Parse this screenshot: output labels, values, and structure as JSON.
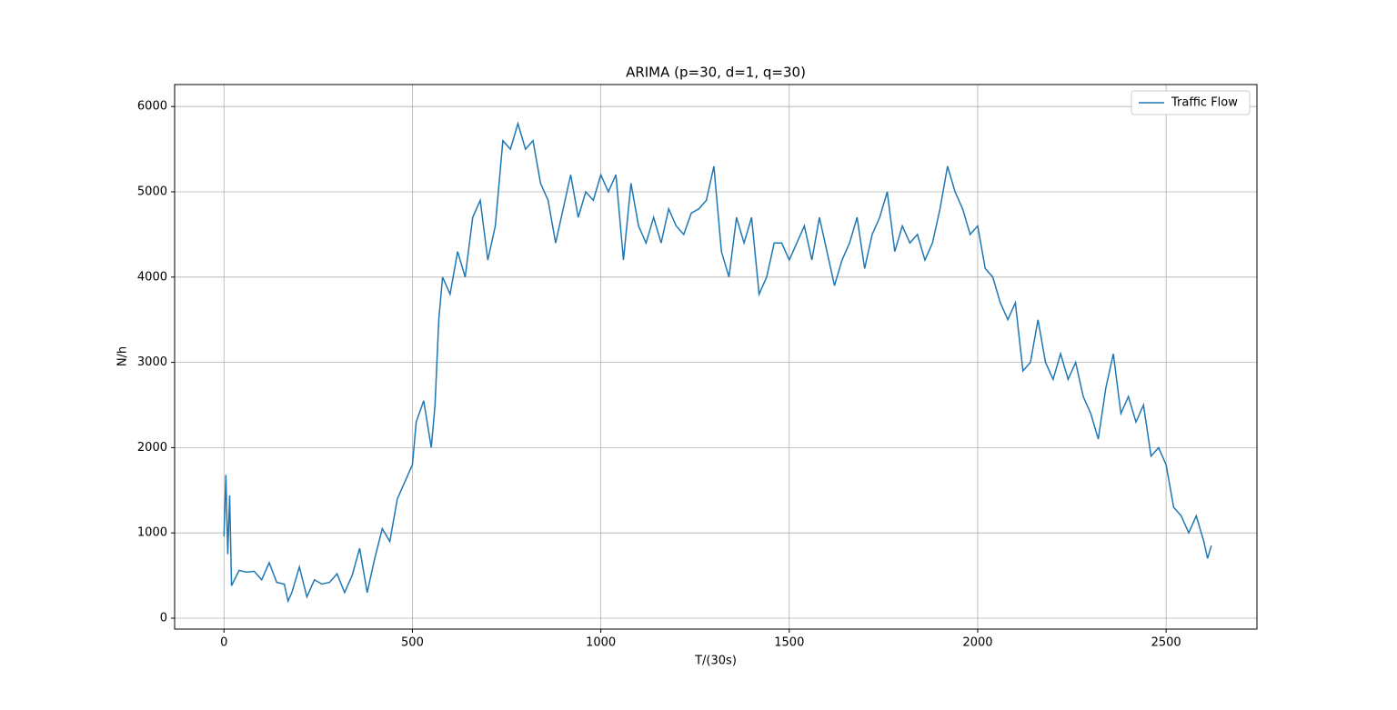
{
  "chart_data": {
    "type": "line",
    "title": "ARIMA (p=30, d=1, q=30)",
    "xlabel": "T/(30s)",
    "ylabel": "N/h",
    "x": [
      0,
      5,
      10,
      15,
      20,
      40,
      60,
      80,
      100,
      120,
      140,
      160,
      170,
      180,
      200,
      220,
      240,
      260,
      280,
      300,
      320,
      340,
      360,
      380,
      400,
      420,
      440,
      460,
      480,
      500,
      510,
      530,
      550,
      560,
      570,
      580,
      600,
      620,
      640,
      660,
      680,
      700,
      720,
      740,
      760,
      780,
      800,
      820,
      840,
      860,
      880,
      900,
      920,
      940,
      960,
      980,
      1000,
      1020,
      1040,
      1060,
      1080,
      1100,
      1120,
      1140,
      1160,
      1180,
      1200,
      1220,
      1240,
      1260,
      1280,
      1300,
      1320,
      1340,
      1360,
      1380,
      1400,
      1420,
      1440,
      1460,
      1480,
      1500,
      1520,
      1540,
      1560,
      1580,
      1600,
      1620,
      1640,
      1660,
      1680,
      1700,
      1720,
      1740,
      1760,
      1780,
      1800,
      1820,
      1840,
      1860,
      1880,
      1900,
      1920,
      1940,
      1960,
      1980,
      2000,
      2020,
      2040,
      2060,
      2080,
      2100,
      2120,
      2140,
      2160,
      2180,
      2200,
      2220,
      2240,
      2260,
      2280,
      2300,
      2320,
      2340,
      2360,
      2380,
      2400,
      2420,
      2440,
      2460,
      2480,
      2500,
      2520,
      2540,
      2560,
      2580,
      2600,
      2610,
      2620
    ],
    "series": [
      {
        "name": "Traffic Flow",
        "color": "#1f77b4",
        "values": [
          960,
          1680,
          750,
          1440,
          380,
          560,
          540,
          550,
          450,
          650,
          420,
          400,
          200,
          300,
          600,
          250,
          450,
          400,
          420,
          520,
          300,
          500,
          820,
          300,
          700,
          1050,
          900,
          1400,
          1600,
          1800,
          2300,
          2550,
          2000,
          2500,
          3500,
          4000,
          3800,
          4300,
          4000,
          4700,
          4900,
          4200,
          4600,
          5600,
          5500,
          5800,
          5500,
          5600,
          5100,
          4900,
          4400,
          4800,
          5200,
          4700,
          5000,
          4900,
          5200,
          5000,
          5200,
          4200,
          5100,
          4600,
          4400,
          4700,
          4400,
          4800,
          4600,
          4500,
          4750,
          4800,
          4900,
          5300,
          4300,
          4000,
          4700,
          4400,
          4700,
          3800,
          4000,
          4400,
          4400,
          4200,
          4400,
          4600,
          4200,
          4700,
          4300,
          3900,
          4200,
          4400,
          4700,
          4100,
          4500,
          4700,
          5000,
          4300,
          4600,
          4400,
          4500,
          4200,
          4400,
          4800,
          5300,
          5000,
          4800,
          4500,
          4600,
          4100,
          4000,
          3700,
          3500,
          3700,
          2900,
          3000,
          3500,
          3000,
          2800,
          3100,
          2800,
          3000,
          2600,
          2400,
          2100,
          2700,
          3100,
          2400,
          2600,
          2300,
          2500,
          1900,
          2000,
          1800,
          1300,
          1200,
          1000,
          1200,
          900,
          700,
          850
        ]
      }
    ],
    "xlim": [
      -131,
      2741
    ],
    "ylim": [
      -128,
      6258
    ],
    "xticks": [
      0,
      500,
      1000,
      1500,
      2000,
      2500
    ],
    "yticks": [
      0,
      1000,
      2000,
      3000,
      4000,
      5000,
      6000
    ],
    "grid": true,
    "legend": "upper right"
  }
}
